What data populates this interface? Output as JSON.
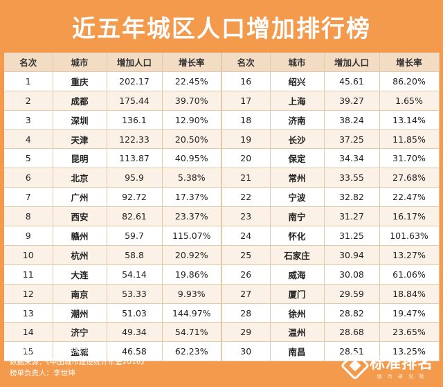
{
  "title": "近五年城区人口增加排行榜",
  "headers": [
    "名次",
    "城市",
    "增加人口",
    "增长率",
    "名次",
    "城市",
    "增加人口",
    "增长率"
  ],
  "rows": [
    {
      "rank_a": "1",
      "city_a": "重庆",
      "inc_a": "202.17",
      "rate_a": "22.45%",
      "rank_b": "16",
      "city_b": "绍兴",
      "inc_b": "45.61",
      "rate_b": "86.20%"
    },
    {
      "rank_a": "2",
      "city_a": "成都",
      "inc_a": "175.44",
      "rate_a": "39.70%",
      "rank_b": "17",
      "city_b": "上海",
      "inc_b": "39.27",
      "rate_b": "1.65%"
    },
    {
      "rank_a": "3",
      "city_a": "深圳",
      "inc_a": "136.1",
      "rate_a": "12.90%",
      "rank_b": "18",
      "city_b": "济南",
      "inc_b": "38.24",
      "rate_b": "13.14%"
    },
    {
      "rank_a": "4",
      "city_a": "天津",
      "inc_a": "122.33",
      "rate_a": "20.50%",
      "rank_b": "19",
      "city_b": "长沙",
      "inc_b": "37.25",
      "rate_b": "11.85%"
    },
    {
      "rank_a": "5",
      "city_a": "昆明",
      "inc_a": "113.87",
      "rate_a": "40.95%",
      "rank_b": "20",
      "city_b": "保定",
      "inc_b": "34.34",
      "rate_b": "31.70%"
    },
    {
      "rank_a": "6",
      "city_a": "北京",
      "inc_a": "95.9",
      "rate_a": "5.38%",
      "rank_b": "21",
      "city_b": "常州",
      "inc_b": "33.55",
      "rate_b": "27.68%"
    },
    {
      "rank_a": "7",
      "city_a": "广州",
      "inc_a": "92.72",
      "rate_a": "17.37%",
      "rank_b": "22",
      "city_b": "宁波",
      "inc_b": "32.82",
      "rate_b": "22.47%"
    },
    {
      "rank_a": "8",
      "city_a": "西安",
      "inc_a": "82.61",
      "rate_a": "23.37%",
      "rank_b": "23",
      "city_b": "南宁",
      "inc_b": "31.27",
      "rate_b": "16.17%"
    },
    {
      "rank_a": "9",
      "city_a": "赣州",
      "inc_a": "59.7",
      "rate_a": "115.07%",
      "rank_b": "24",
      "city_b": "怀化",
      "inc_b": "31.25",
      "rate_b": "101.63%"
    },
    {
      "rank_a": "10",
      "city_a": "杭州",
      "inc_a": "58.8",
      "rate_a": "20.92%",
      "rank_b": "25",
      "city_b": "石家庄",
      "inc_b": "30.94",
      "rate_b": "13.27%"
    },
    {
      "rank_a": "11",
      "city_a": "大连",
      "inc_a": "54.14",
      "rate_a": "19.86%",
      "rank_b": "26",
      "city_b": "威海",
      "inc_b": "30.08",
      "rate_b": "61.06%"
    },
    {
      "rank_a": "12",
      "city_a": "南京",
      "inc_a": "53.33",
      "rate_a": "9.93%",
      "rank_b": "27",
      "city_b": "厦门",
      "inc_b": "29.59",
      "rate_b": "18.84%"
    },
    {
      "rank_a": "13",
      "city_a": "潮州",
      "inc_a": "51.03",
      "rate_a": "144.97%",
      "rank_b": "28",
      "city_b": "徐州",
      "inc_b": "28.82",
      "rate_b": "19.47%"
    },
    {
      "rank_a": "14",
      "city_a": "济宁",
      "inc_a": "49.34",
      "rate_a": "54.71%",
      "rank_b": "29",
      "city_b": "温州",
      "inc_b": "28.68",
      "rate_b": "23.65%"
    },
    {
      "rank_a": "15",
      "city_a": "盐城",
      "inc_a": "46.58",
      "rate_a": "62.23%",
      "rank_b": "30",
      "city_b": "南昌",
      "inc_b": "28.51",
      "rate_b": "13.25%"
    }
  ],
  "footer": {
    "line1": "研发机构：标准排名城市研究院",
    "line2": "数据来源：《中国城市建设统计年鉴2016》",
    "line3": "榜单负责人：李世坤",
    "brand_name": "标准排名",
    "brand_sub": "城 市 研 究 院"
  },
  "colors": {
    "background": "#f49a4c",
    "header_row": "#f2dcc3",
    "alt_row": "#fbf1e6",
    "grid_line": "#e2c9a8"
  }
}
